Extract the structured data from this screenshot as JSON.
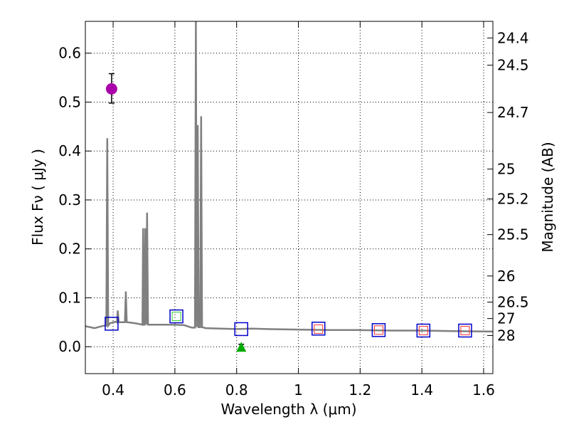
{
  "chart_data": {
    "type": "scatter",
    "xlabel": "Wavelength  λ (μm)",
    "ylabel": "Flux  Fν ( μJy )",
    "y2label": "Magnitude (AB)",
    "xlim": [
      0.31,
      1.63
    ],
    "ylim": [
      -0.055,
      0.665
    ],
    "grid": true,
    "x_ticks": [
      0.4,
      0.6,
      0.8,
      1.0,
      1.2,
      1.4,
      1.6
    ],
    "x_tick_labels": [
      "0.4",
      "0.6",
      "0.8",
      "1",
      "1.2",
      "1.4",
      "1.6"
    ],
    "y_ticks": [
      0.0,
      0.1,
      0.2,
      0.3,
      0.4,
      0.5,
      0.6
    ],
    "y_tick_labels": [
      "0.0",
      "0.1",
      "0.2",
      "0.3",
      "0.4",
      "0.5",
      "0.6"
    ],
    "mag_ticks": [
      24.4,
      24.5,
      24.7,
      25,
      25.2,
      25.5,
      26,
      26.5,
      27,
      28
    ],
    "mag_tick_labels": [
      "24.4",
      "24.5",
      "24.7",
      "25",
      "25.2",
      "25.5",
      "26",
      "26.5",
      "27",
      "28"
    ],
    "model_spectrum": {
      "name": "model spectrum",
      "color": "#808080",
      "x": [
        0.31,
        0.34,
        0.37,
        0.378,
        0.381,
        0.384,
        0.39,
        0.4,
        0.41,
        0.412,
        0.415,
        0.418,
        0.43,
        0.438,
        0.441,
        0.444,
        0.46,
        0.48,
        0.495,
        0.497,
        0.5,
        0.502,
        0.504,
        0.507,
        0.51,
        0.513,
        0.52,
        0.56,
        0.6,
        0.63,
        0.655,
        0.665,
        0.668,
        0.671,
        0.674,
        0.677,
        0.682,
        0.685,
        0.688,
        0.7,
        0.75,
        0.8,
        0.85,
        0.9,
        1.0,
        1.1,
        1.2,
        1.3,
        1.4,
        1.5,
        1.63
      ],
      "y": [
        0.042,
        0.038,
        0.043,
        0.043,
        0.426,
        0.043,
        0.048,
        0.05,
        0.051,
        0.05,
        0.074,
        0.05,
        0.05,
        0.05,
        0.113,
        0.05,
        0.049,
        0.047,
        0.045,
        0.242,
        0.045,
        0.045,
        0.242,
        0.045,
        0.274,
        0.045,
        0.045,
        0.045,
        0.045,
        0.044,
        0.039,
        0.039,
        0.665,
        0.04,
        0.453,
        0.04,
        0.04,
        0.471,
        0.04,
        0.038,
        0.037,
        0.036,
        0.037,
        0.036,
        0.035,
        0.034,
        0.034,
        0.033,
        0.033,
        0.032,
        0.031
      ]
    },
    "model_photometry": {
      "name": "model photometry",
      "color": "#0000cc",
      "x": [
        0.395,
        0.605,
        0.815,
        1.065,
        1.26,
        1.405,
        1.54
      ],
      "y": [
        0.047,
        0.062,
        0.036,
        0.037,
        0.034,
        0.033,
        0.033
      ]
    },
    "observed_photometry": {
      "name": "observed photometry",
      "color": "#ff3333",
      "x": [
        1.065,
        1.26,
        1.405,
        1.54
      ],
      "y": [
        0.036,
        0.034,
        0.033,
        0.033
      ]
    },
    "observed_green": {
      "name": "observed point",
      "color": "#33cc33",
      "x": [
        0.605
      ],
      "y": [
        0.062
      ]
    },
    "detection": {
      "name": "detection",
      "color": "#aa00aa",
      "x": 0.395,
      "y": 0.527,
      "err_low": 0.498,
      "err_high": 0.558
    },
    "upper_limit": {
      "name": "upper limit",
      "color": "#00aa00",
      "x": 0.815,
      "y": 0.0,
      "err_low": -0.005,
      "err_high": 0.005
    }
  }
}
